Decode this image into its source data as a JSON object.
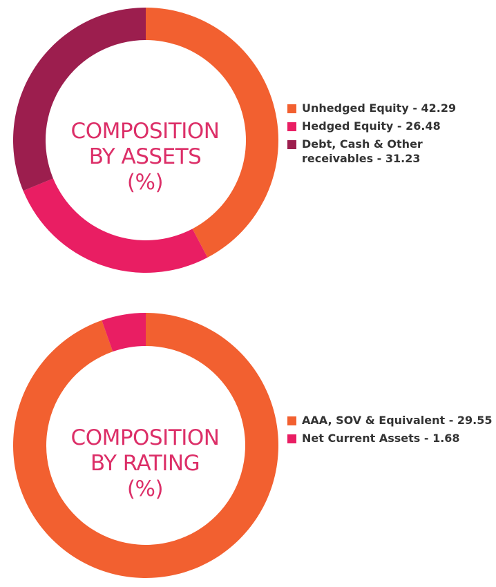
{
  "colors": {
    "orange": "#f26030",
    "magenta": "#e91e63",
    "maroon": "#9c1e4e",
    "title": "#dc2f68"
  },
  "chart_data": [
    {
      "type": "pie",
      "variant": "donut",
      "center_label": [
        "COMPOSITION",
        "BY ASSETS",
        "(%)"
      ],
      "categories": [
        "Unhedged Equity",
        "Hedged Equity",
        "Debt, Cash & Other receivables"
      ],
      "values": [
        42.29,
        26.48,
        31.23
      ],
      "colors": [
        "#f26030",
        "#e91e63",
        "#9c1e4e"
      ],
      "legend_placement": "right",
      "legend": [
        {
          "text": "Unhedged Equity - 42.29",
          "color": "#f26030"
        },
        {
          "text": "Hedged Equity - 26.48",
          "color": "#e91e63"
        },
        {
          "text": "Debt, Cash & Other receivables - 31.23",
          "color": "#9c1e4e"
        }
      ]
    },
    {
      "type": "pie",
      "variant": "donut",
      "center_label": [
        "COMPOSITION",
        "BY RATING",
        "(%)"
      ],
      "categories": [
        "AAA, SOV & Equivalent",
        "Net Current Assets"
      ],
      "values": [
        29.55,
        1.68
      ],
      "colors": [
        "#f26030",
        "#e91e63"
      ],
      "legend_placement": "right",
      "legend": [
        {
          "text": "AAA, SOV & Equivalent - 29.55",
          "color": "#f26030"
        },
        {
          "text": "Net Current Assets - 1.68",
          "color": "#e91e63"
        }
      ]
    }
  ]
}
